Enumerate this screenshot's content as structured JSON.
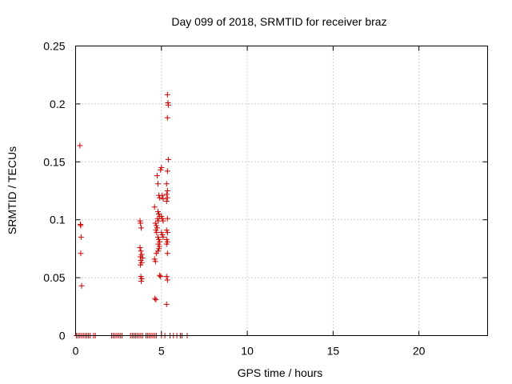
{
  "chart_data": {
    "type": "scatter",
    "title": "Day 099 of 2018, SRMTID for receiver braz",
    "xlabel": "GPS time / hours",
    "ylabel": "SRMTID / TECUs",
    "xlim": [
      0,
      24
    ],
    "ylim": [
      0,
      0.25
    ],
    "xticks": [
      0,
      5,
      10,
      15,
      20
    ],
    "xtick_labels": [
      "0",
      "5",
      "10",
      "15",
      "20"
    ],
    "yticks": [
      0,
      0.05,
      0.1,
      0.15,
      0.2,
      0.25
    ],
    "ytick_labels": [
      "0",
      "0.05",
      "0.1",
      "0.15",
      "0.2",
      "0.25"
    ],
    "grid": true,
    "marker": "plus",
    "color": "#cc0000",
    "series": [
      {
        "points": [
          [
            0.25,
            0.164
          ],
          [
            0.28,
            0.096
          ],
          [
            0.3,
            0.095
          ],
          [
            0.32,
            0.085
          ],
          [
            0.3,
            0.071
          ],
          [
            0.35,
            0.043
          ],
          [
            3.75,
            0.099
          ],
          [
            3.78,
            0.097
          ],
          [
            3.82,
            0.093
          ],
          [
            3.75,
            0.076
          ],
          [
            3.8,
            0.073
          ],
          [
            3.85,
            0.07
          ],
          [
            3.78,
            0.068
          ],
          [
            3.9,
            0.067
          ],
          [
            3.8,
            0.065
          ],
          [
            3.85,
            0.063
          ],
          [
            3.78,
            0.061
          ],
          [
            3.8,
            0.051
          ],
          [
            3.85,
            0.049
          ],
          [
            3.82,
            0.047
          ],
          [
            4.6,
            0.111
          ],
          [
            4.65,
            0.097
          ],
          [
            4.7,
            0.095
          ],
          [
            4.75,
            0.093
          ],
          [
            4.68,
            0.091
          ],
          [
            4.72,
            0.089
          ],
          [
            4.6,
            0.066
          ],
          [
            4.65,
            0.064
          ],
          [
            4.7,
            0.071
          ],
          [
            4.62,
            0.032
          ],
          [
            4.68,
            0.031
          ],
          [
            4.75,
            0.138
          ],
          [
            4.8,
            0.131
          ],
          [
            4.85,
            0.121
          ],
          [
            4.9,
            0.119
          ],
          [
            4.8,
            0.107
          ],
          [
            4.85,
            0.105
          ],
          [
            4.9,
            0.103
          ],
          [
            4.78,
            0.101
          ],
          [
            4.82,
            0.099
          ],
          [
            4.8,
            0.085
          ],
          [
            4.85,
            0.083
          ],
          [
            4.9,
            0.081
          ],
          [
            4.82,
            0.079
          ],
          [
            4.88,
            0.077
          ],
          [
            4.85,
            0.075
          ],
          [
            4.8,
            0.073
          ],
          [
            4.9,
            0.052
          ],
          [
            4.95,
            0.051
          ],
          [
            4.95,
            0.143
          ],
          [
            5.0,
            0.145
          ],
          [
            5.05,
            0.121
          ],
          [
            5.1,
            0.118
          ],
          [
            5.0,
            0.103
          ],
          [
            5.05,
            0.101
          ],
          [
            5.1,
            0.099
          ],
          [
            5.0,
            0.089
          ],
          [
            5.05,
            0.087
          ],
          [
            5.1,
            0.085
          ],
          [
            5.35,
            0.208
          ],
          [
            5.38,
            0.201
          ],
          [
            5.4,
            0.199
          ],
          [
            5.35,
            0.188
          ],
          [
            5.4,
            0.152
          ],
          [
            5.35,
            0.142
          ],
          [
            5.3,
            0.131
          ],
          [
            5.35,
            0.125
          ],
          [
            5.3,
            0.122
          ],
          [
            5.35,
            0.119
          ],
          [
            5.3,
            0.116
          ],
          [
            5.35,
            0.101
          ],
          [
            5.3,
            0.091
          ],
          [
            5.35,
            0.089
          ],
          [
            5.3,
            0.083
          ],
          [
            5.35,
            0.081
          ],
          [
            5.3,
            0.079
          ],
          [
            5.35,
            0.071
          ],
          [
            5.3,
            0.051
          ],
          [
            5.35,
            0.048
          ],
          [
            5.3,
            0.027
          ],
          [
            0.05,
            0
          ],
          [
            0.15,
            0
          ],
          [
            0.25,
            0
          ],
          [
            0.35,
            0
          ],
          [
            0.45,
            0
          ],
          [
            0.55,
            0
          ],
          [
            0.65,
            0
          ],
          [
            0.75,
            0
          ],
          [
            0.85,
            0
          ],
          [
            1.05,
            0
          ],
          [
            1.15,
            0
          ],
          [
            2.1,
            0
          ],
          [
            2.2,
            0
          ],
          [
            2.3,
            0
          ],
          [
            2.4,
            0
          ],
          [
            2.5,
            0
          ],
          [
            2.6,
            0
          ],
          [
            2.7,
            0
          ],
          [
            3.2,
            0
          ],
          [
            3.3,
            0
          ],
          [
            3.4,
            0
          ],
          [
            3.5,
            0
          ],
          [
            3.6,
            0
          ],
          [
            3.7,
            0
          ],
          [
            3.8,
            0
          ],
          [
            3.9,
            0
          ],
          [
            4.1,
            0
          ],
          [
            4.2,
            0
          ],
          [
            4.3,
            0
          ],
          [
            4.4,
            0
          ],
          [
            4.5,
            0
          ],
          [
            4.6,
            0
          ],
          [
            4.7,
            0
          ],
          [
            5.0,
            0
          ],
          [
            5.2,
            0
          ],
          [
            5.5,
            0
          ],
          [
            5.7,
            0
          ],
          [
            5.9,
            0
          ],
          [
            6.1,
            0
          ],
          [
            6.2,
            0
          ],
          [
            6.5,
            0
          ]
        ]
      }
    ]
  }
}
